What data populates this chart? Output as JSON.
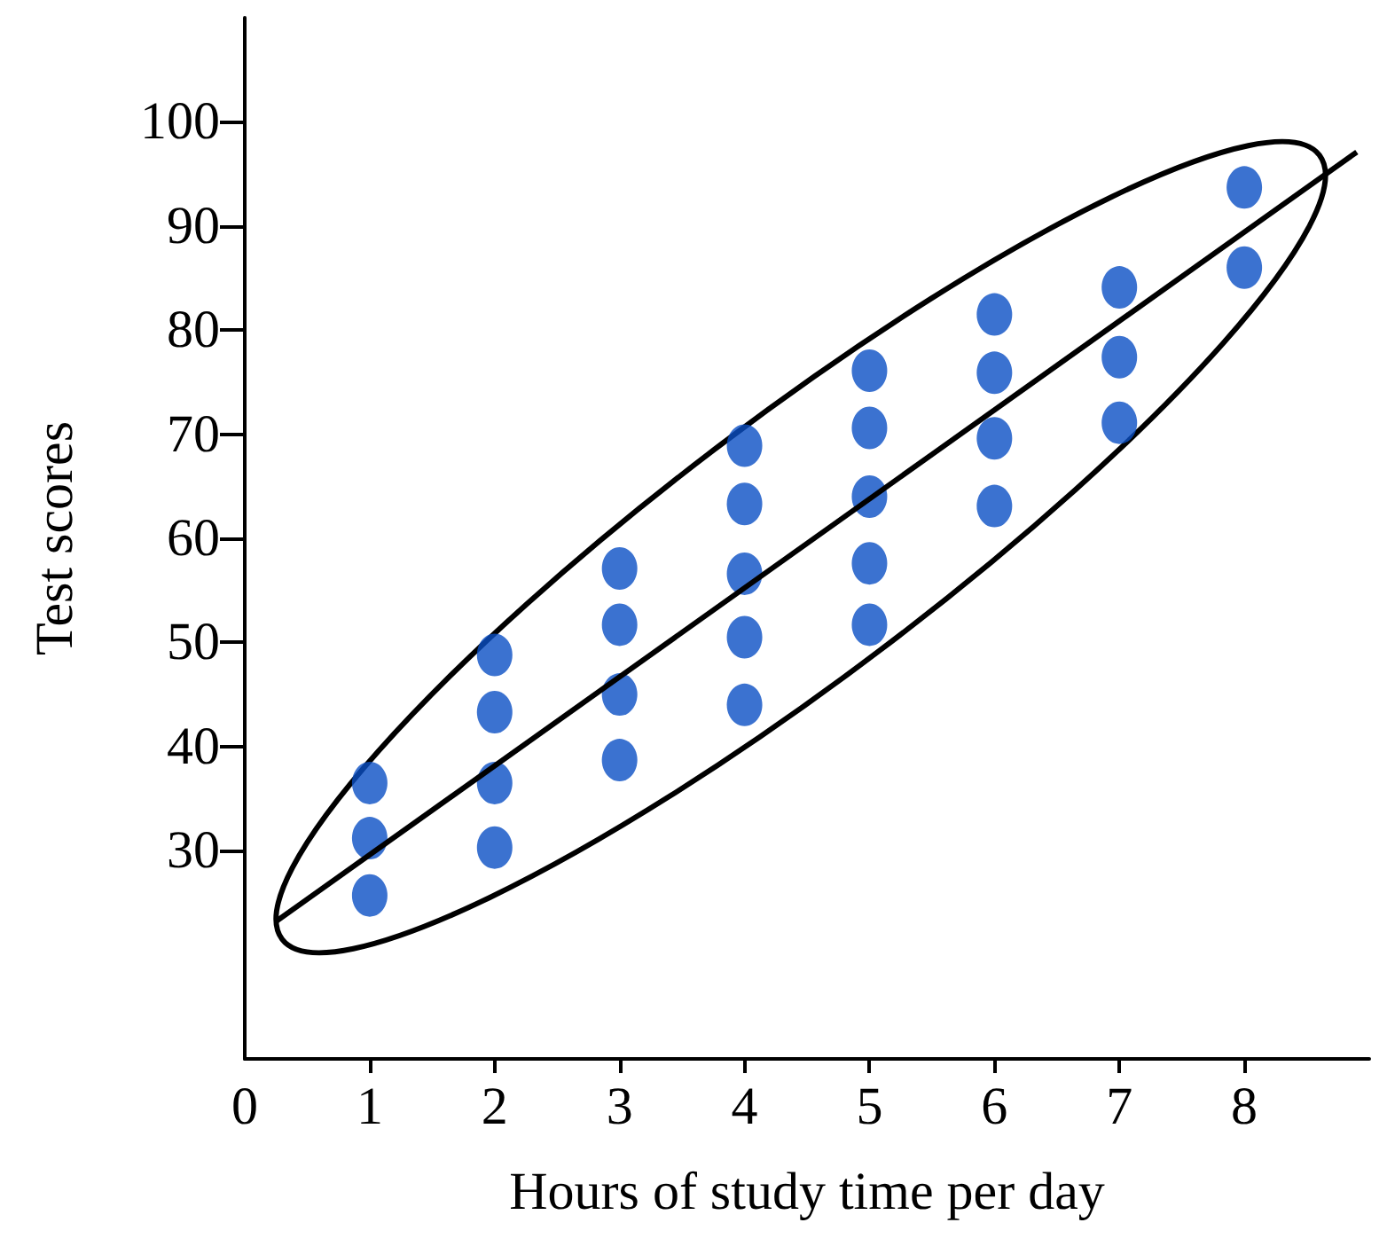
{
  "chart_data": {
    "type": "scatter",
    "xlabel": "Hours of study time per day",
    "ylabel": "Test scores",
    "xlim": [
      0,
      9
    ],
    "ylim": [
      10,
      110
    ],
    "xticks": [
      0,
      1,
      2,
      3,
      4,
      5,
      6,
      7,
      8
    ],
    "yticks": [
      30,
      40,
      50,
      60,
      70,
      80,
      90,
      100
    ],
    "grid": false,
    "marker": "circle",
    "series": [
      {
        "color": "#0a4fc4",
        "x": [
          1,
          1,
          1,
          2,
          2,
          2,
          2,
          3,
          3,
          3,
          3,
          4,
          4,
          4,
          4,
          4,
          5,
          5,
          5,
          5,
          5,
          6,
          6,
          6,
          6,
          7,
          7,
          7,
          8,
          8
        ],
        "values": [
          36.5,
          31.2,
          25.7,
          48.8,
          43.3,
          36.5,
          30.3,
          57.1,
          51.7,
          45,
          38.7,
          68.9,
          63.3,
          56.6,
          50.5,
          44,
          76.1,
          70.6,
          64,
          57.6,
          51.7,
          81.5,
          75.9,
          69.6,
          63.1,
          84.1,
          77.4,
          71.1,
          93.7,
          86
        ]
      },
      {
        "type": "line",
        "color": "#000000",
        "marker": "none",
        "x": [
          0.25,
          8.9
        ],
        "values": [
          23.2,
          97.1
        ]
      }
    ]
  }
}
